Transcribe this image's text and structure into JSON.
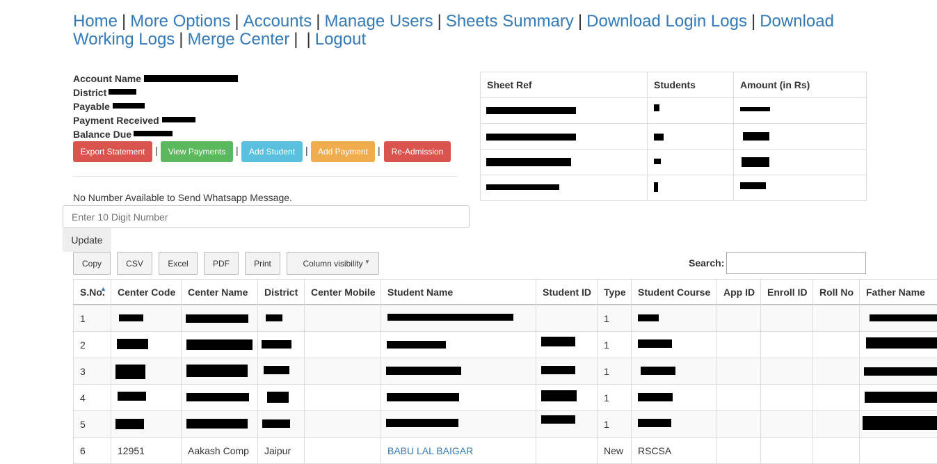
{
  "nav": {
    "separator": "|",
    "links": [
      "Home",
      "More Options",
      "Accounts",
      "Manage Users",
      "Sheets Summary",
      "Download Login Logs",
      "Download Working Logs",
      "Merge Center",
      "Logout"
    ]
  },
  "account": {
    "labels": [
      "Account Name",
      "District",
      "Payable",
      "Payment Received",
      "Balance Due"
    ]
  },
  "actions": [
    "Export Statement",
    "View Payments",
    "Add Student",
    "Add Payment",
    "Re-Admission"
  ],
  "whatsapp": {
    "message": "No Number Available to Send Whatsapp Message.",
    "placeholder": "Enter 10 Digit Number",
    "button": "Update"
  },
  "export_buttons": [
    "Copy",
    "CSV",
    "Excel",
    "PDF",
    "Print",
    "Column visibility"
  ],
  "search_label": "Search:",
  "sheet_table": {
    "headers": [
      "Sheet Ref",
      "Students",
      "Amount (in Rs)"
    ]
  },
  "table": {
    "headers": [
      "S.No.",
      "Center Code",
      "Center Name",
      "District",
      "Center Mobile",
      "Student Name",
      "Student ID",
      "Type",
      "Student Course",
      "App ID",
      "Enroll ID",
      "Roll No",
      "Father Name"
    ],
    "rows": [
      {
        "sno": "1",
        "type": "1"
      },
      {
        "sno": "2",
        "type": "1"
      },
      {
        "sno": "3",
        "type": "1"
      },
      {
        "sno": "4",
        "type": "1"
      },
      {
        "sno": "5",
        "type": "1"
      },
      {
        "sno": "6",
        "center_code": "12951",
        "center_name": "Aakash Comp",
        "district": "Jaipur",
        "student_name": "BABU LAL BAIGAR",
        "type": "New",
        "student_course": "RSCSA"
      }
    ]
  }
}
